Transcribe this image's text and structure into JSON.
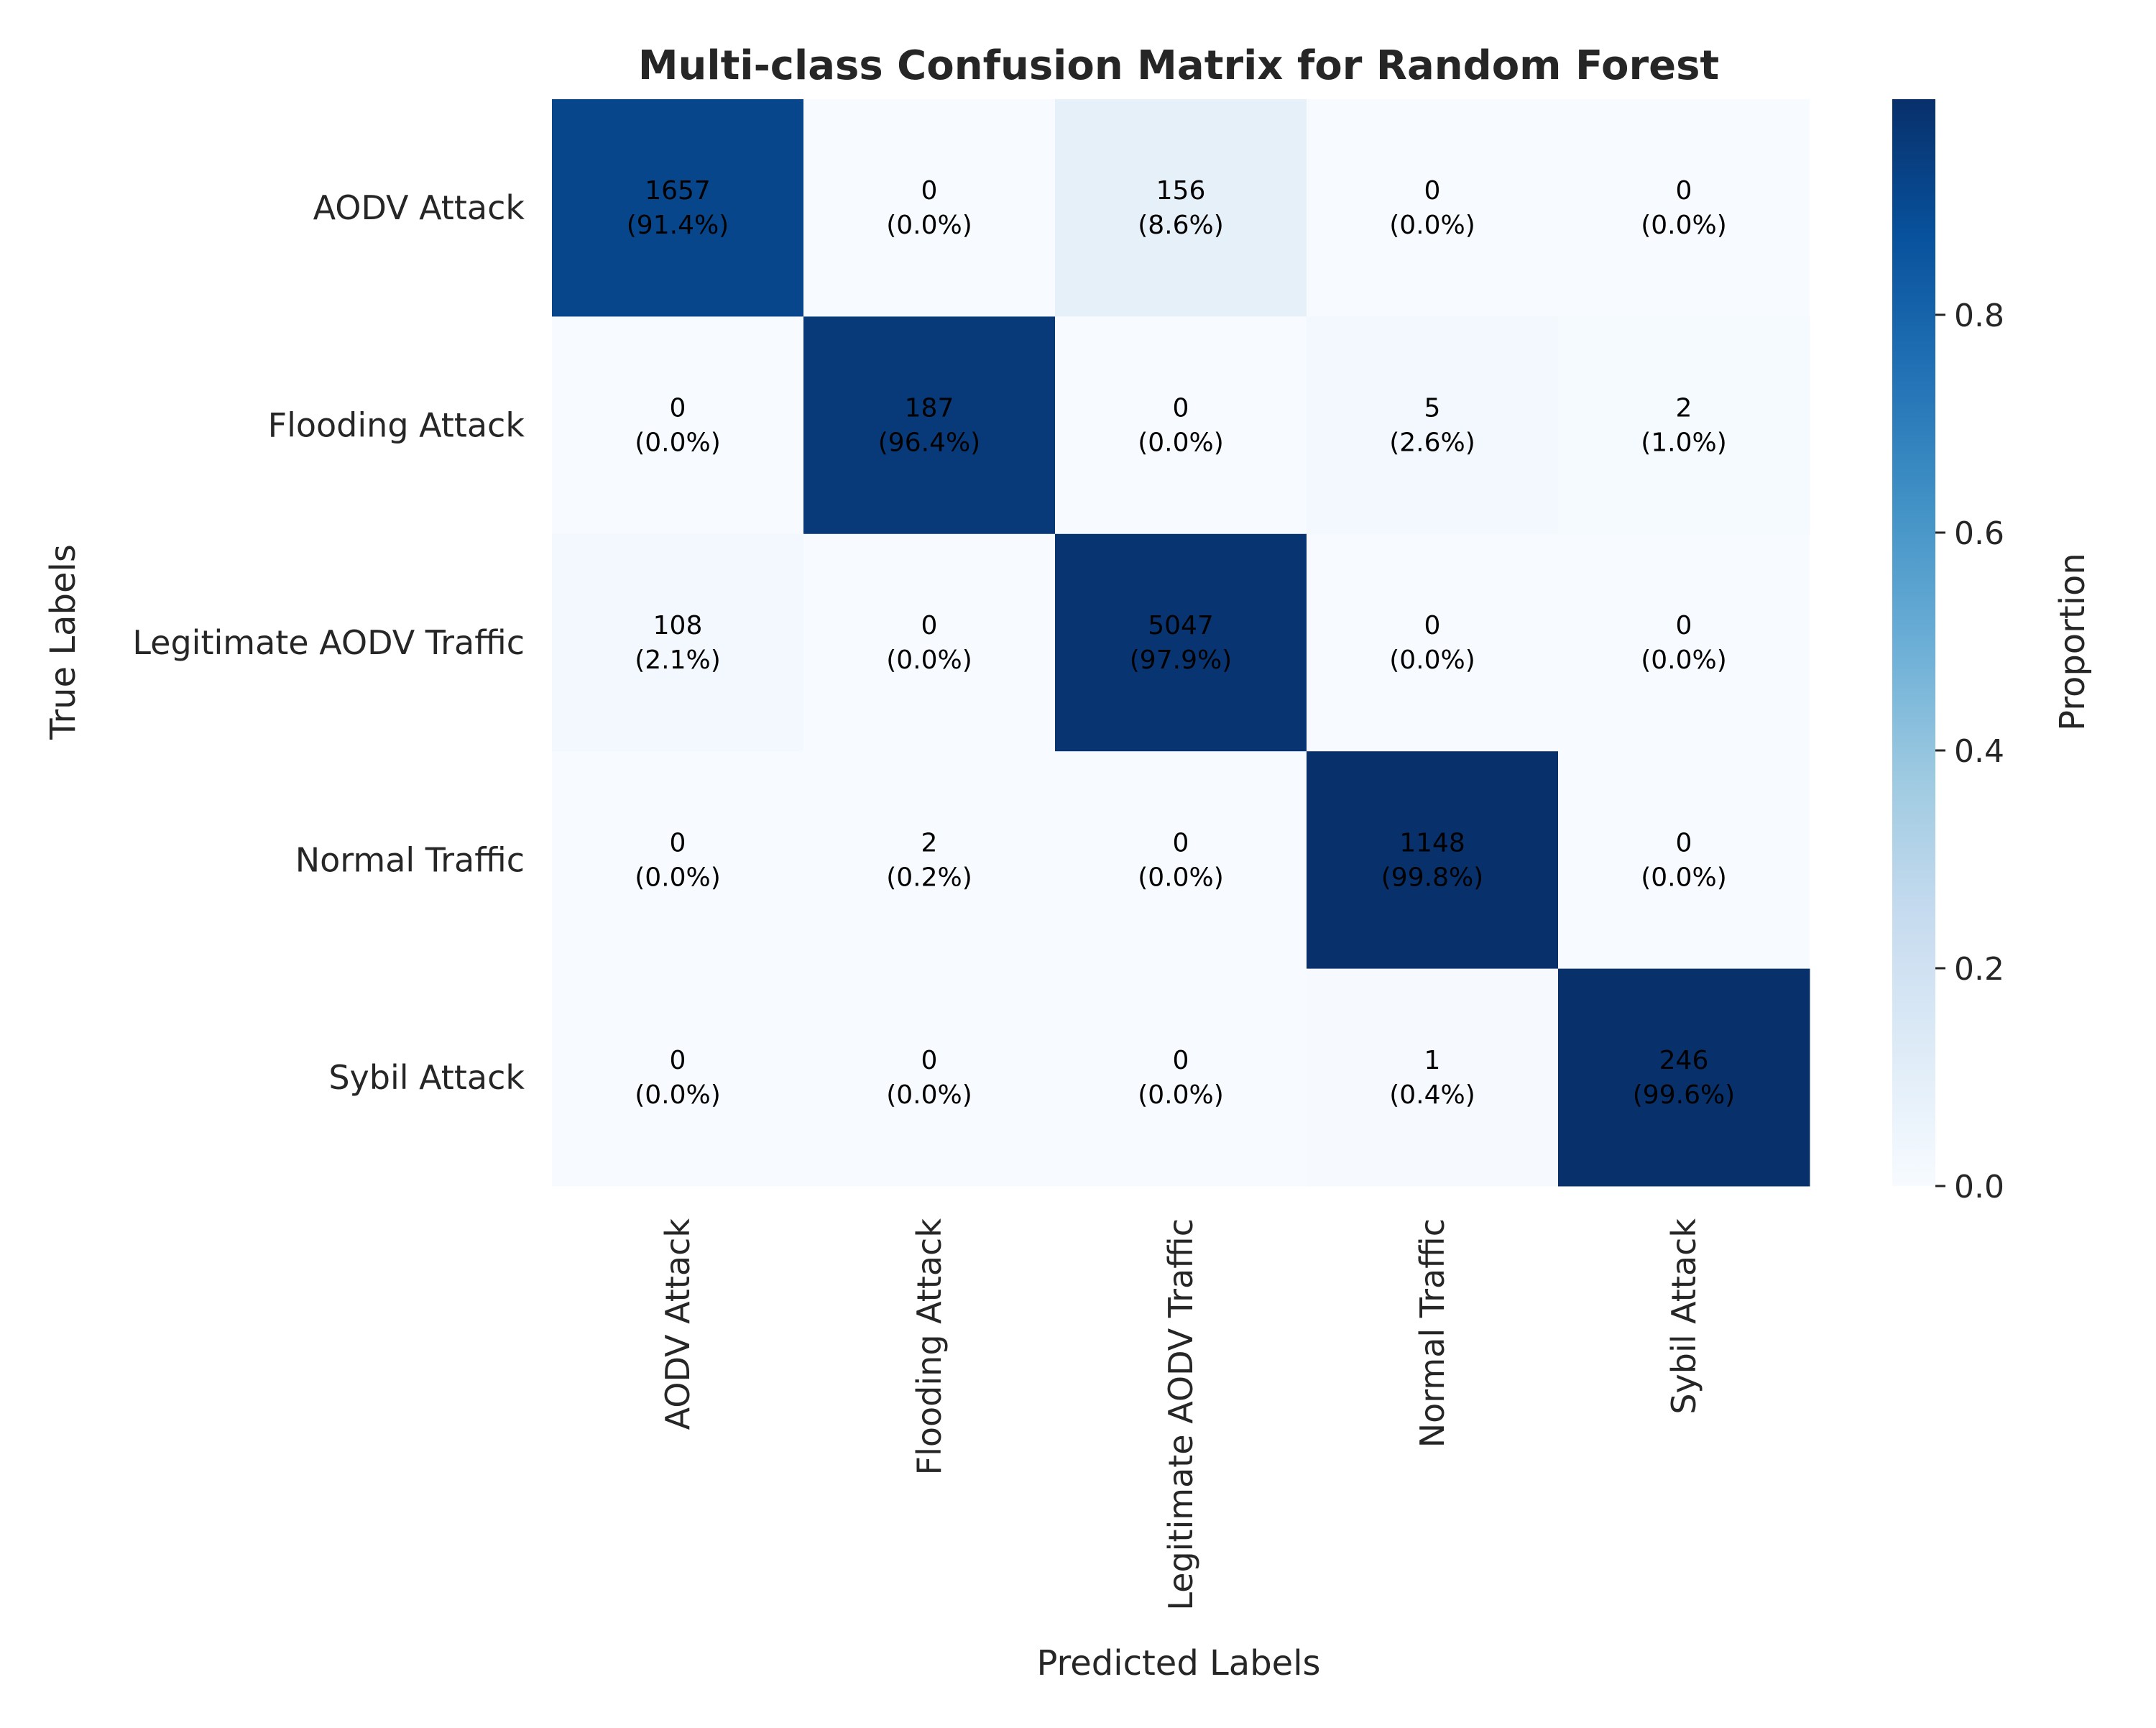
{
  "chart_data": {
    "type": "heatmap",
    "title": "Multi-class Confusion Matrix for Random Forest",
    "xlabel": "Predicted Labels",
    "ylabel": "True Labels",
    "x_categories": [
      "AODV Attack",
      "Flooding Attack",
      "Legitimate AODV Traffic",
      "Normal Traffic",
      "Sybil Attack"
    ],
    "y_categories": [
      "AODV Attack",
      "Flooding Attack",
      "Legitimate AODV Traffic",
      "Normal Traffic",
      "Sybil Attack"
    ],
    "counts": [
      [
        1657,
        0,
        156,
        0,
        0
      ],
      [
        0,
        187,
        0,
        5,
        2
      ],
      [
        108,
        0,
        5047,
        0,
        0
      ],
      [
        0,
        2,
        0,
        1148,
        0
      ],
      [
        0,
        0,
        0,
        1,
        246
      ]
    ],
    "percent_labels": [
      [
        "(91.4%)",
        "(0.0%)",
        "(8.6%)",
        "(0.0%)",
        "(0.0%)"
      ],
      [
        "(0.0%)",
        "(96.4%)",
        "(0.0%)",
        "(2.6%)",
        "(1.0%)"
      ],
      [
        "(2.1%)",
        "(0.0%)",
        "(97.9%)",
        "(0.0%)",
        "(0.0%)"
      ],
      [
        "(0.0%)",
        "(0.2%)",
        "(0.0%)",
        "(99.8%)",
        "(0.0%)"
      ],
      [
        "(0.0%)",
        "(0.0%)",
        "(0.0%)",
        "(0.4%)",
        "(99.6%)"
      ]
    ],
    "proportions": [
      [
        0.914,
        0.0,
        0.086,
        0.0,
        0.0
      ],
      [
        0.0,
        0.964,
        0.0,
        0.026,
        0.01
      ],
      [
        0.021,
        0.0,
        0.979,
        0.0,
        0.0
      ],
      [
        0.0,
        0.002,
        0.0,
        0.998,
        0.0
      ],
      [
        0.0,
        0.0,
        0.0,
        0.004,
        0.996
      ]
    ],
    "colorbar": {
      "label": "Proportion",
      "range": [
        0,
        0.998
      ],
      "ticks": [
        0.0,
        0.2,
        0.4,
        0.6,
        0.8
      ],
      "tick_labels": [
        "0.0",
        "0.2",
        "0.4",
        "0.6",
        "0.8"
      ],
      "colormap": "Blues"
    },
    "grid": false
  }
}
